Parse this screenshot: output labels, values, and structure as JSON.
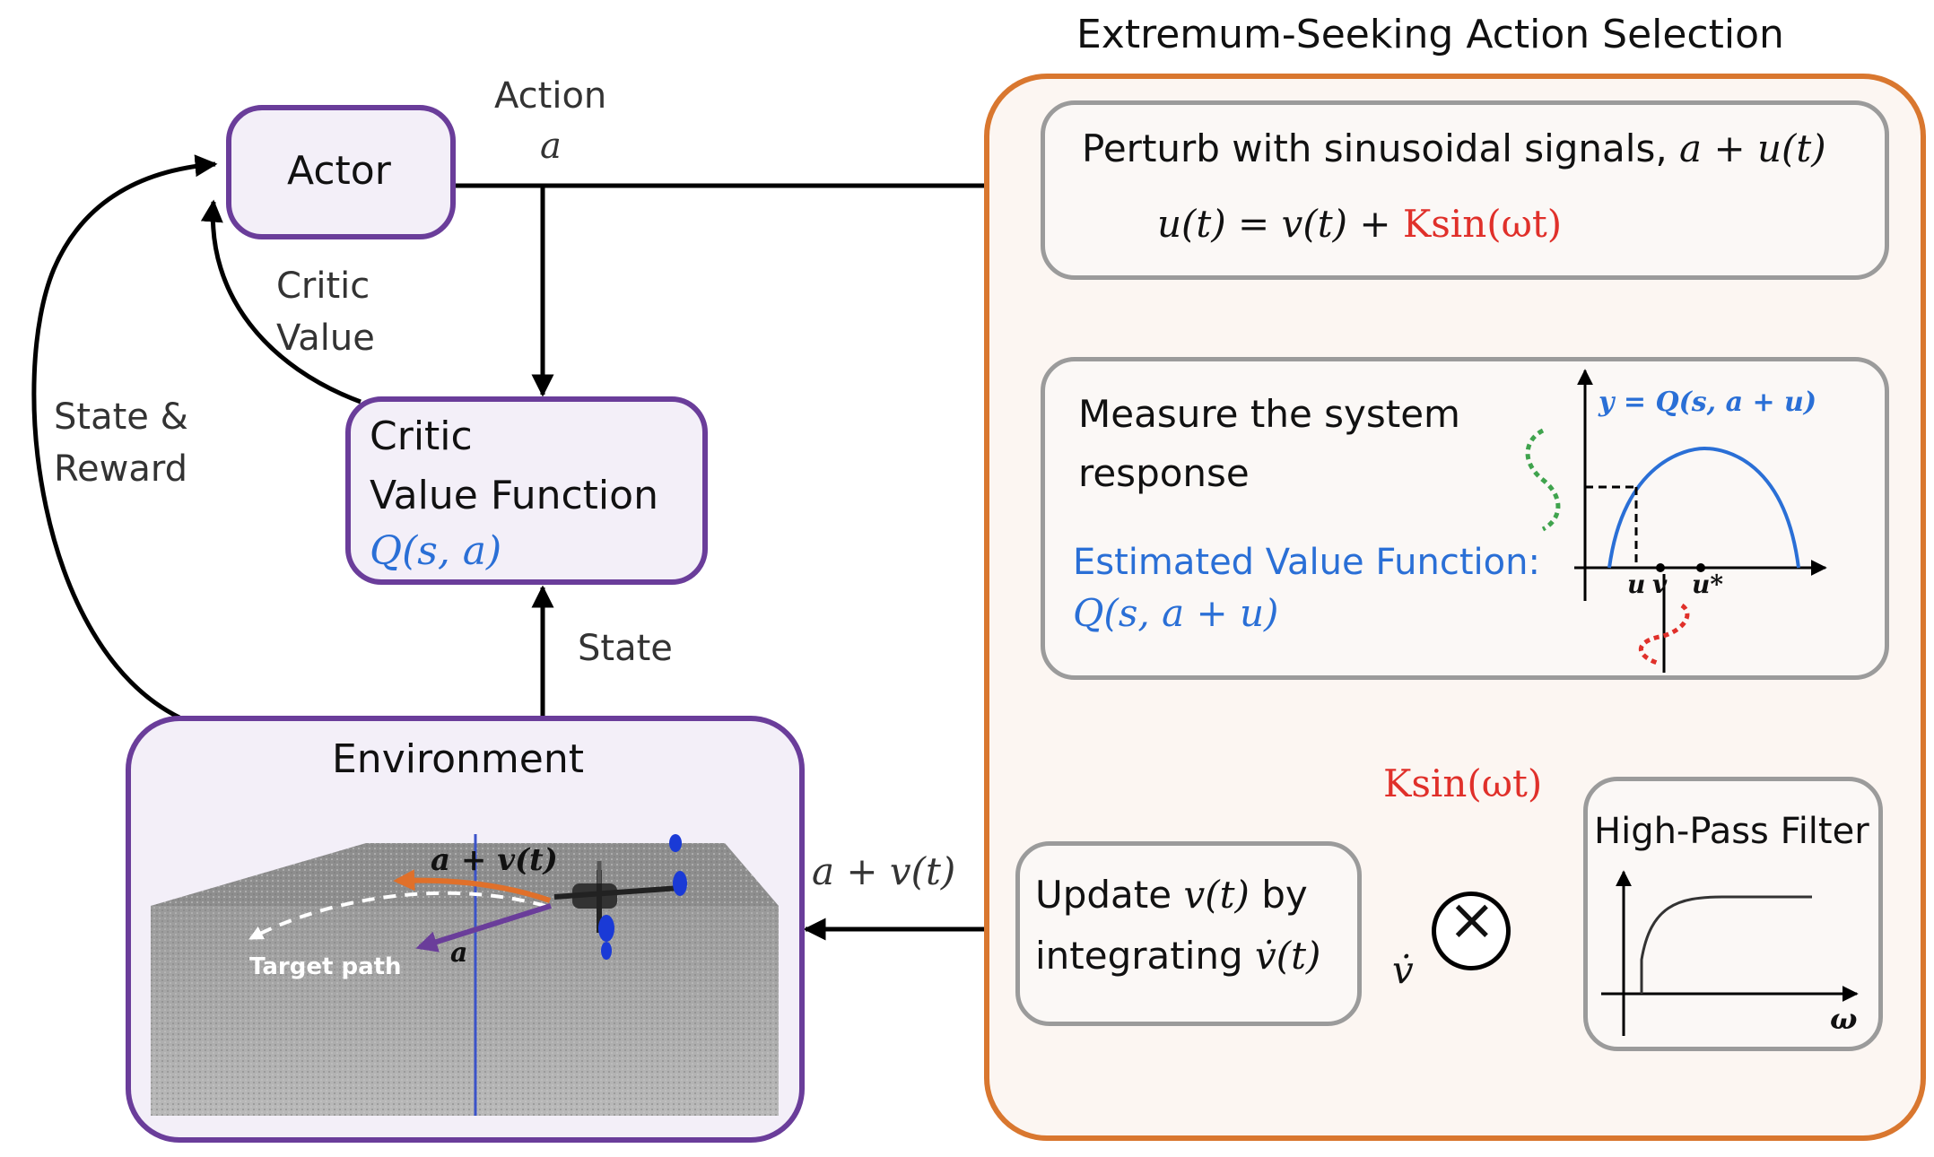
{
  "es_title": "Extremum-Seeking Action Selection",
  "actor": {
    "label": "Actor"
  },
  "action": {
    "label": "Action",
    "symbol": "a"
  },
  "critic_value": {
    "line1": "Critic",
    "line2": "Value"
  },
  "state_reward": {
    "line1": "State &",
    "line2": "Reward"
  },
  "critic_box": {
    "line1": "Critic",
    "line2": "Value Function",
    "formula": "Q(s, a)"
  },
  "state": {
    "label": "State"
  },
  "environment": {
    "title": "Environment",
    "label_av": "a + v(t)",
    "label_a": "a",
    "label_target": "Target path"
  },
  "perturb": {
    "text": "Perturb with sinusoidal signals, ",
    "text_math": "a + u(t)",
    "eq_left": "u(t) = v(t) + ",
    "eq_red": "Ksin(ωt)"
  },
  "measure": {
    "line1": "Measure the system",
    "line2": "response",
    "est_label": "Estimated Value Function:",
    "est_formula": "Q(s, a + u)",
    "plot_label": "y = Q(s, a + u)",
    "tick_u": "u",
    "tick_v": "v",
    "tick_ustar": "u*"
  },
  "hpf": {
    "title": "High-Pass Filter",
    "axis": "ω"
  },
  "multiplier": {
    "input": "Ksin(ωt)",
    "symbol": "×",
    "output": "v̇"
  },
  "update": {
    "line1_pre": "Update ",
    "line1_math": "v(t)",
    "line1_post": " by",
    "line2_pre": "integrating ",
    "line2_math": "v̇(t)"
  },
  "output_label": "a + v(t)",
  "colors": {
    "purple": "#6a3d9a",
    "orange": "#d9772f",
    "blue": "#2a6fd6",
    "red": "#e0302a",
    "green": "#3fa34d",
    "grey": "#9b9b9b"
  }
}
